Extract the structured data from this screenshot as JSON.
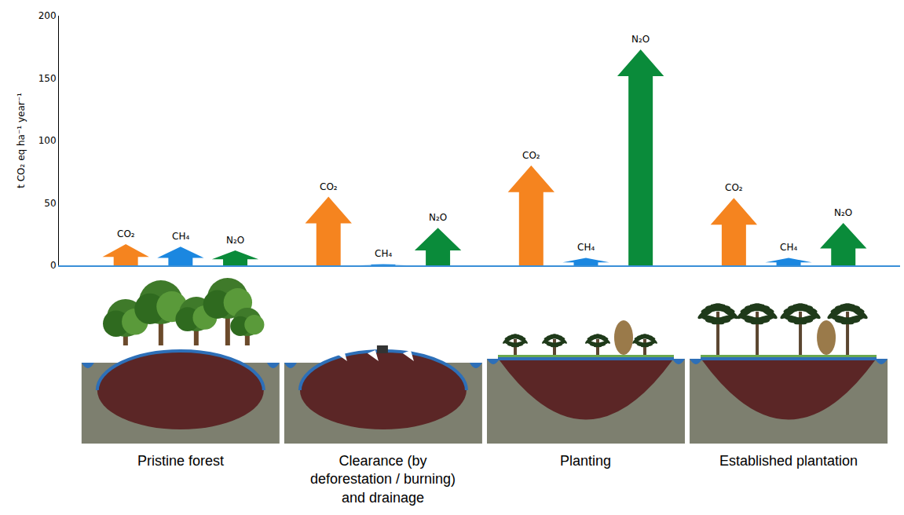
{
  "chart_data": {
    "type": "bar",
    "marker": "arrow",
    "y_label": "t CO₂ eq ha⁻¹ year⁻¹",
    "categories": [
      "Pristine forest",
      "Clearance (by deforestation / burning) and drainage",
      "Planting",
      "Established plantation"
    ],
    "series": [
      {
        "name": "CO₂",
        "color": "#f5841f",
        "values": [
          17,
          55,
          80,
          54
        ]
      },
      {
        "name": "CH₄",
        "color": "#1b87e0",
        "values": [
          15,
          1,
          6,
          6
        ]
      },
      {
        "name": "N₂O",
        "color": "#0a8b3a",
        "values": [
          12,
          30,
          173,
          34
        ]
      }
    ],
    "ylim": [
      0,
      200
    ],
    "yticks": [
      0,
      50,
      100,
      150,
      200
    ],
    "grid": false,
    "tick_labels": "y"
  }
}
